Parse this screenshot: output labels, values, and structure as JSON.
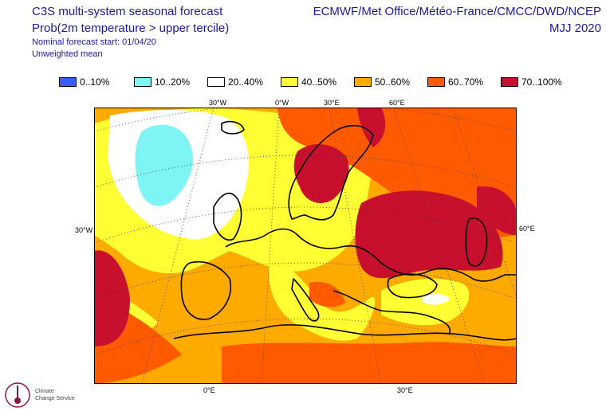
{
  "header": {
    "title": "C3S multi-system seasonal forecast",
    "subtitle": "Prob(2m temperature > upper tercile)",
    "start": "Nominal forecast start: 01/04/20",
    "mean": "Unweighted mean",
    "centres": "ECMWF/Met Office/Météo-France/CMCC/DWD/NCEP",
    "period": "MJJ 2020"
  },
  "legend": [
    {
      "label": "0..10%",
      "color": "#3a5cff"
    },
    {
      "label": "10..20%",
      "color": "#7ef4f4"
    },
    {
      "label": "20..40%",
      "color": "#ffffff"
    },
    {
      "label": "40..50%",
      "color": "#ffff33"
    },
    {
      "label": "50..60%",
      "color": "#ffaa00"
    },
    {
      "label": "60..70%",
      "color": "#ff5a00"
    },
    {
      "label": "70..100%",
      "color": "#c8102e"
    }
  ],
  "grid_labels": {
    "top": [
      "30°W",
      "0°W",
      "30°E",
      "60°E"
    ],
    "left": "30°W",
    "right": "60°E",
    "bottom": [
      "0°E",
      "30°E"
    ]
  },
  "logo": {
    "line1": "Climate",
    "line2": "Change Service"
  },
  "colors": {
    "text": "#1a1aa0",
    "coast": "#000000",
    "grid": "#333333"
  }
}
